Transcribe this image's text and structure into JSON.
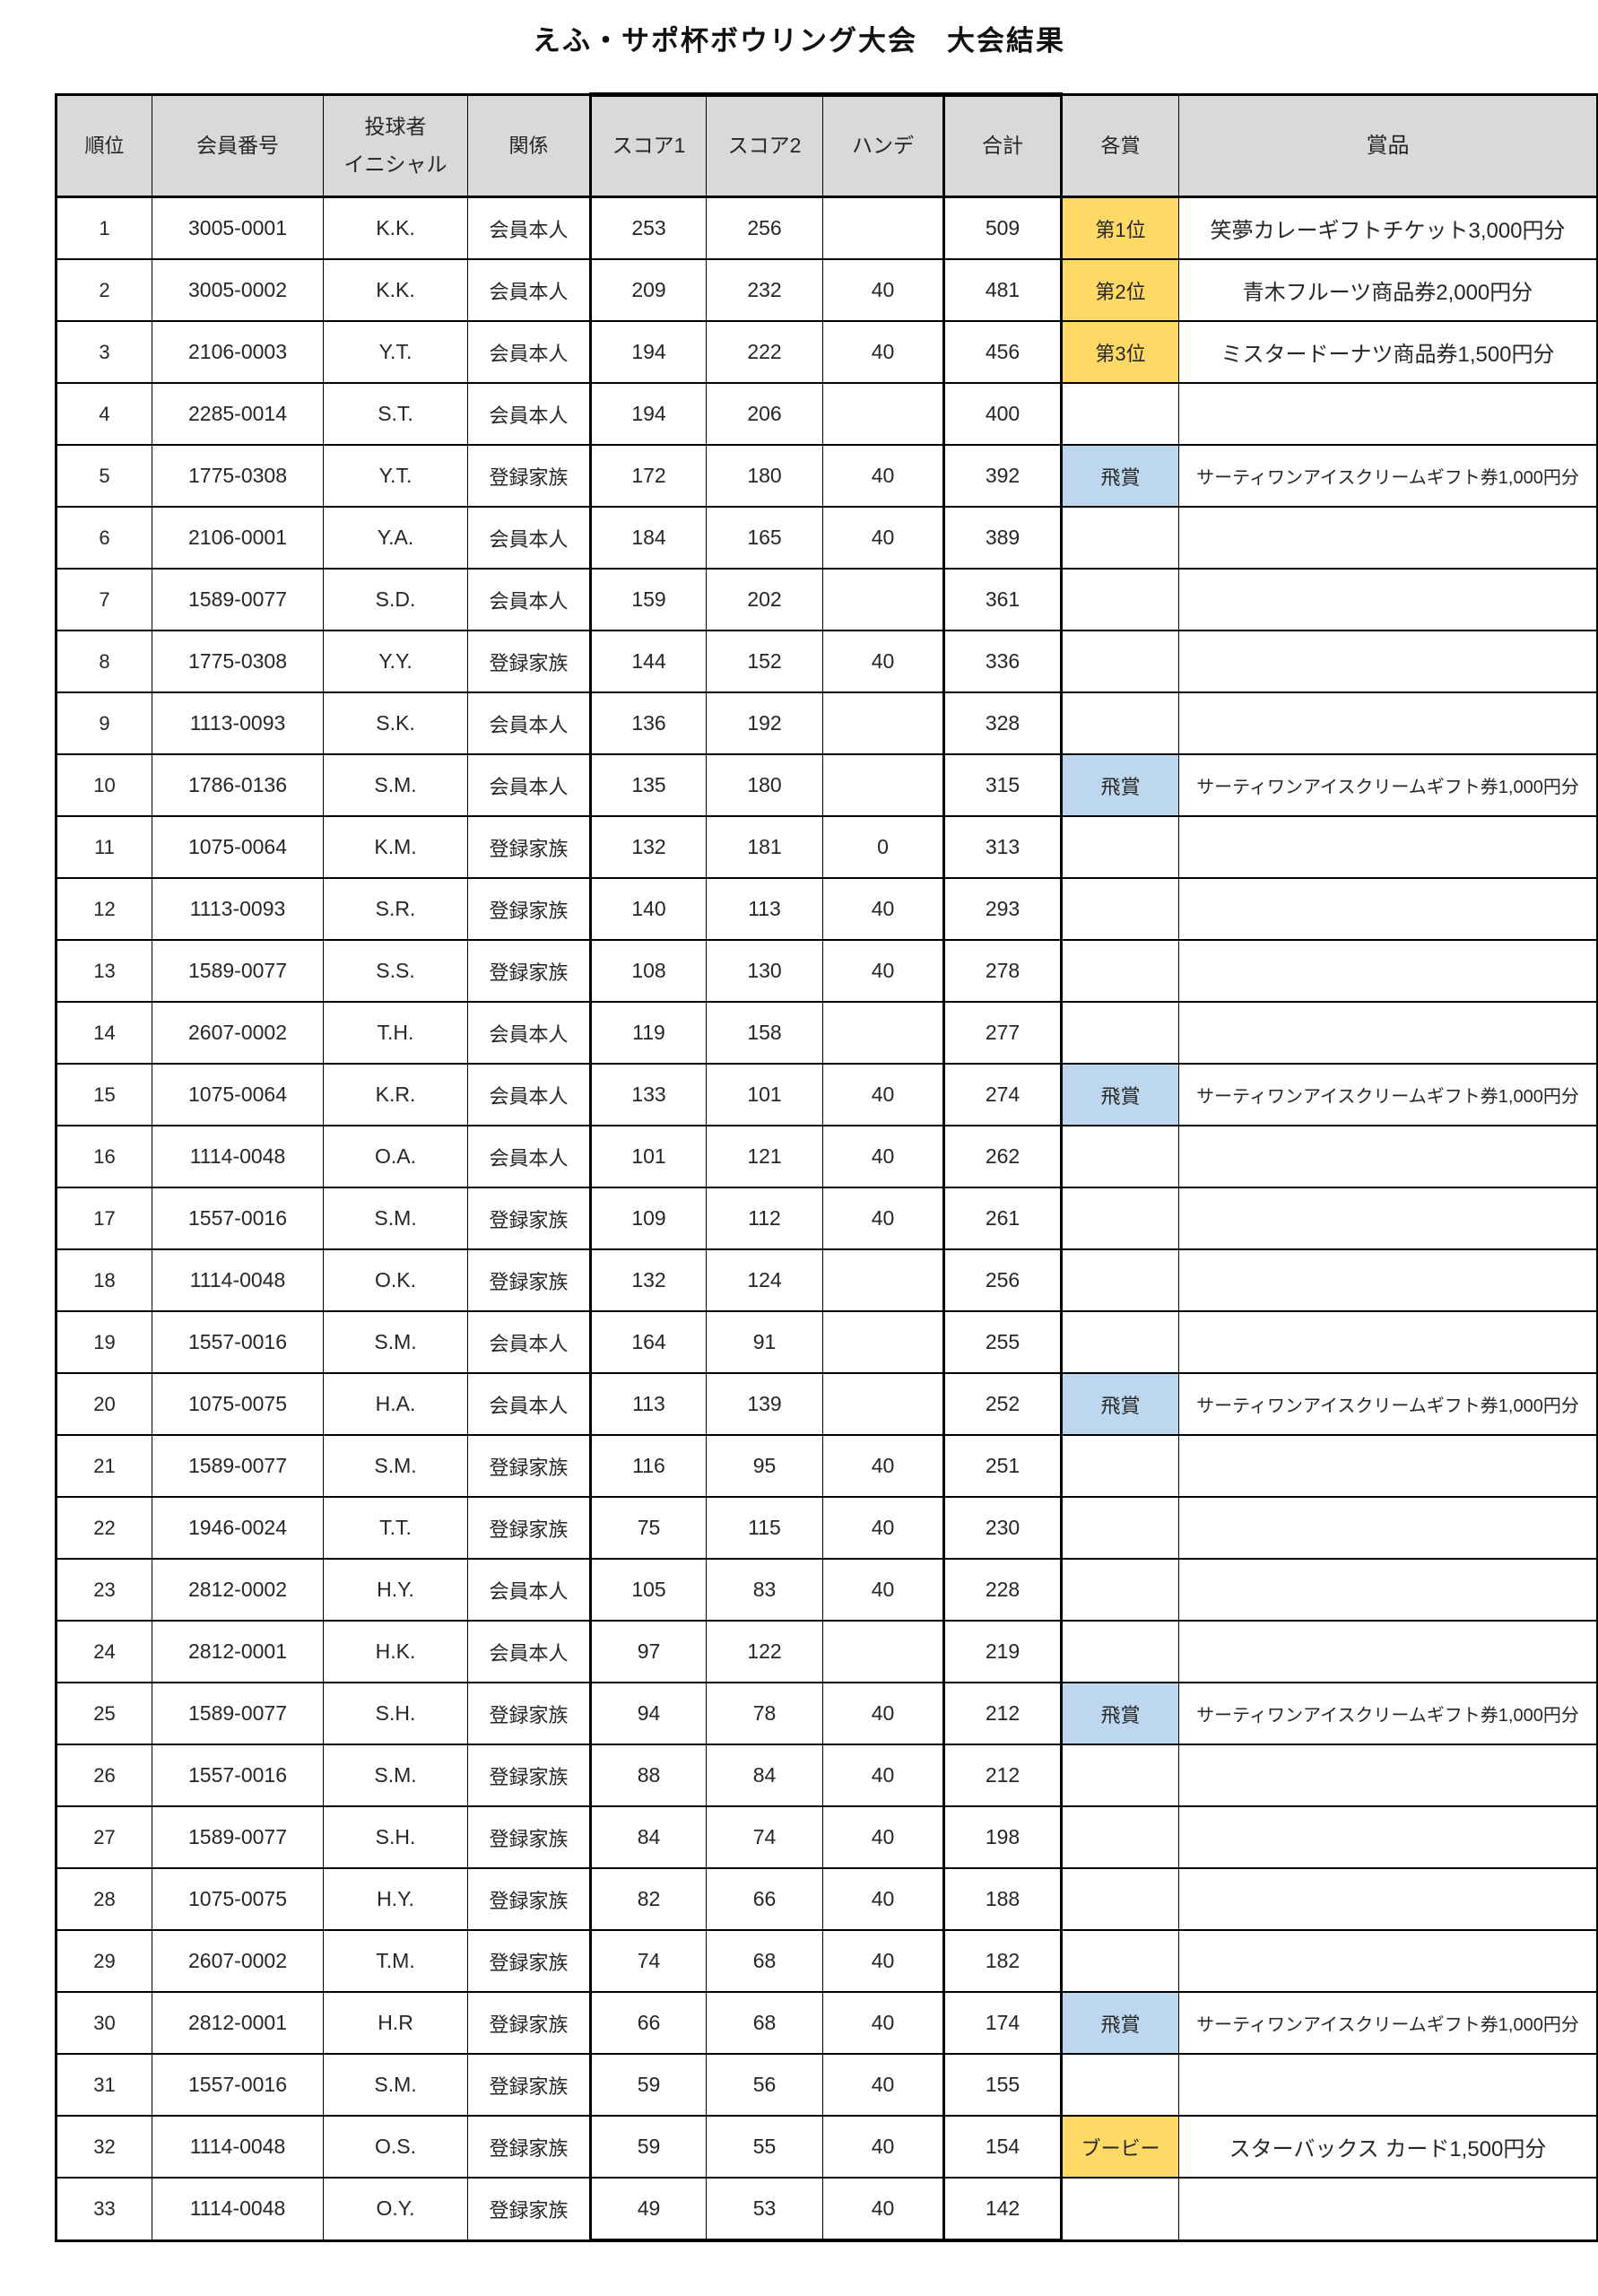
{
  "title": "えふ・サポ杯ボウリング大会　大会結果",
  "colors": {
    "award_gold": "#ffd966",
    "award_blue": "#bdd7ee",
    "header_gray": "#d9d9d9",
    "grid_line": "#000000"
  },
  "table": {
    "columns": [
      {
        "key": "rank",
        "label": "順位"
      },
      {
        "key": "member",
        "label": "会員番号"
      },
      {
        "key": "initials",
        "label": "投球者\nイニシャル"
      },
      {
        "key": "relation",
        "label": "関係"
      },
      {
        "key": "score1",
        "label": "スコア1"
      },
      {
        "key": "score2",
        "label": "スコア2"
      },
      {
        "key": "handicap",
        "label": "ハンデ"
      },
      {
        "key": "total",
        "label": "合計"
      },
      {
        "key": "award",
        "label": "各賞"
      },
      {
        "key": "prize",
        "label": "賞品"
      }
    ],
    "rows": [
      {
        "rank": "1",
        "member": "3005-0001",
        "initials": "K.K.",
        "relation": "会員本人",
        "score1": "253",
        "score2": "256",
        "handicap": "",
        "total": "509",
        "award": "第1位",
        "award_color": "gold",
        "prize": "笑夢カレーギフトチケット3,000円分",
        "prize_small": false
      },
      {
        "rank": "2",
        "member": "3005-0002",
        "initials": "K.K.",
        "relation": "会員本人",
        "score1": "209",
        "score2": "232",
        "handicap": "40",
        "total": "481",
        "award": "第2位",
        "award_color": "gold",
        "prize": "青木フルーツ商品券2,000円分",
        "prize_small": false
      },
      {
        "rank": "3",
        "member": "2106-0003",
        "initials": "Y.T.",
        "relation": "会員本人",
        "score1": "194",
        "score2": "222",
        "handicap": "40",
        "total": "456",
        "award": "第3位",
        "award_color": "gold",
        "prize": "ミスタードーナツ商品券1,500円分",
        "prize_small": false
      },
      {
        "rank": "4",
        "member": "2285-0014",
        "initials": "S.T.",
        "relation": "会員本人",
        "score1": "194",
        "score2": "206",
        "handicap": "",
        "total": "400",
        "award": "",
        "award_color": "",
        "prize": "",
        "prize_small": false
      },
      {
        "rank": "5",
        "member": "1775-0308",
        "initials": "Y.T.",
        "relation": "登録家族",
        "score1": "172",
        "score2": "180",
        "handicap": "40",
        "total": "392",
        "award": "飛賞",
        "award_color": "blue",
        "prize": "サーティワンアイスクリームギフト券1,000円分",
        "prize_small": true
      },
      {
        "rank": "6",
        "member": "2106-0001",
        "initials": "Y.A.",
        "relation": "会員本人",
        "score1": "184",
        "score2": "165",
        "handicap": "40",
        "total": "389",
        "award": "",
        "award_color": "",
        "prize": "",
        "prize_small": false
      },
      {
        "rank": "7",
        "member": "1589-0077",
        "initials": "S.D.",
        "relation": "会員本人",
        "score1": "159",
        "score2": "202",
        "handicap": "",
        "total": "361",
        "award": "",
        "award_color": "",
        "prize": "",
        "prize_small": false
      },
      {
        "rank": "8",
        "member": "1775-0308",
        "initials": "Y.Y.",
        "relation": "登録家族",
        "score1": "144",
        "score2": "152",
        "handicap": "40",
        "total": "336",
        "award": "",
        "award_color": "",
        "prize": "",
        "prize_small": false
      },
      {
        "rank": "9",
        "member": "1113-0093",
        "initials": "S.K.",
        "relation": "会員本人",
        "score1": "136",
        "score2": "192",
        "handicap": "",
        "total": "328",
        "award": "",
        "award_color": "",
        "prize": "",
        "prize_small": false
      },
      {
        "rank": "10",
        "member": "1786-0136",
        "initials": "S.M.",
        "relation": "会員本人",
        "score1": "135",
        "score2": "180",
        "handicap": "",
        "total": "315",
        "award": "飛賞",
        "award_color": "blue",
        "prize": "サーティワンアイスクリームギフト券1,000円分",
        "prize_small": true
      },
      {
        "rank": "11",
        "member": "1075-0064",
        "initials": "K.M.",
        "relation": "登録家族",
        "score1": "132",
        "score2": "181",
        "handicap": "0",
        "total": "313",
        "award": "",
        "award_color": "",
        "prize": "",
        "prize_small": false
      },
      {
        "rank": "12",
        "member": "1113-0093",
        "initials": "S.R.",
        "relation": "登録家族",
        "score1": "140",
        "score2": "113",
        "handicap": "40",
        "total": "293",
        "award": "",
        "award_color": "",
        "prize": "",
        "prize_small": false
      },
      {
        "rank": "13",
        "member": "1589-0077",
        "initials": "S.S.",
        "relation": "登録家族",
        "score1": "108",
        "score2": "130",
        "handicap": "40",
        "total": "278",
        "award": "",
        "award_color": "",
        "prize": "",
        "prize_small": false
      },
      {
        "rank": "14",
        "member": "2607-0002",
        "initials": "T.H.",
        "relation": "会員本人",
        "score1": "119",
        "score2": "158",
        "handicap": "",
        "total": "277",
        "award": "",
        "award_color": "",
        "prize": "",
        "prize_small": false
      },
      {
        "rank": "15",
        "member": "1075-0064",
        "initials": "K.R.",
        "relation": "会員本人",
        "score1": "133",
        "score2": "101",
        "handicap": "40",
        "total": "274",
        "award": "飛賞",
        "award_color": "blue",
        "prize": "サーティワンアイスクリームギフト券1,000円分",
        "prize_small": true
      },
      {
        "rank": "16",
        "member": "1114-0048",
        "initials": "O.A.",
        "relation": "会員本人",
        "score1": "101",
        "score2": "121",
        "handicap": "40",
        "total": "262",
        "award": "",
        "award_color": "",
        "prize": "",
        "prize_small": false
      },
      {
        "rank": "17",
        "member": "1557-0016",
        "initials": "S.M.",
        "relation": "登録家族",
        "score1": "109",
        "score2": "112",
        "handicap": "40",
        "total": "261",
        "award": "",
        "award_color": "",
        "prize": "",
        "prize_small": false
      },
      {
        "rank": "18",
        "member": "1114-0048",
        "initials": "O.K.",
        "relation": "登録家族",
        "score1": "132",
        "score2": "124",
        "handicap": "",
        "total": "256",
        "award": "",
        "award_color": "",
        "prize": "",
        "prize_small": false
      },
      {
        "rank": "19",
        "member": "1557-0016",
        "initials": "S.M.",
        "relation": "会員本人",
        "score1": "164",
        "score2": "91",
        "handicap": "",
        "total": "255",
        "award": "",
        "award_color": "",
        "prize": "",
        "prize_small": false
      },
      {
        "rank": "20",
        "member": "1075-0075",
        "initials": "H.A.",
        "relation": "会員本人",
        "score1": "113",
        "score2": "139",
        "handicap": "",
        "total": "252",
        "award": "飛賞",
        "award_color": "blue",
        "prize": "サーティワンアイスクリームギフト券1,000円分",
        "prize_small": true
      },
      {
        "rank": "21",
        "member": "1589-0077",
        "initials": "S.M.",
        "relation": "登録家族",
        "score1": "116",
        "score2": "95",
        "handicap": "40",
        "total": "251",
        "award": "",
        "award_color": "",
        "prize": "",
        "prize_small": false
      },
      {
        "rank": "22",
        "member": "1946-0024",
        "initials": "T.T.",
        "relation": "登録家族",
        "score1": "75",
        "score2": "115",
        "handicap": "40",
        "total": "230",
        "award": "",
        "award_color": "",
        "prize": "",
        "prize_small": false
      },
      {
        "rank": "23",
        "member": "2812-0002",
        "initials": "H.Y.",
        "relation": "会員本人",
        "score1": "105",
        "score2": "83",
        "handicap": "40",
        "total": "228",
        "award": "",
        "award_color": "",
        "prize": "",
        "prize_small": false
      },
      {
        "rank": "24",
        "member": "2812-0001",
        "initials": "H.K.",
        "relation": "会員本人",
        "score1": "97",
        "score2": "122",
        "handicap": "",
        "total": "219",
        "award": "",
        "award_color": "",
        "prize": "",
        "prize_small": false
      },
      {
        "rank": "25",
        "member": "1589-0077",
        "initials": "S.H.",
        "relation": "登録家族",
        "score1": "94",
        "score2": "78",
        "handicap": "40",
        "total": "212",
        "award": "飛賞",
        "award_color": "blue",
        "prize": "サーティワンアイスクリームギフト券1,000円分",
        "prize_small": true
      },
      {
        "rank": "26",
        "member": "1557-0016",
        "initials": "S.M.",
        "relation": "登録家族",
        "score1": "88",
        "score2": "84",
        "handicap": "40",
        "total": "212",
        "award": "",
        "award_color": "",
        "prize": "",
        "prize_small": false
      },
      {
        "rank": "27",
        "member": "1589-0077",
        "initials": "S.H.",
        "relation": "登録家族",
        "score1": "84",
        "score2": "74",
        "handicap": "40",
        "total": "198",
        "award": "",
        "award_color": "",
        "prize": "",
        "prize_small": false
      },
      {
        "rank": "28",
        "member": "1075-0075",
        "initials": "H.Y.",
        "relation": "登録家族",
        "score1": "82",
        "score2": "66",
        "handicap": "40",
        "total": "188",
        "award": "",
        "award_color": "",
        "prize": "",
        "prize_small": false
      },
      {
        "rank": "29",
        "member": "2607-0002",
        "initials": "T.M.",
        "relation": "登録家族",
        "score1": "74",
        "score2": "68",
        "handicap": "40",
        "total": "182",
        "award": "",
        "award_color": "",
        "prize": "",
        "prize_small": false
      },
      {
        "rank": "30",
        "member": "2812-0001",
        "initials": "H.R",
        "relation": "登録家族",
        "score1": "66",
        "score2": "68",
        "handicap": "40",
        "total": "174",
        "award": "飛賞",
        "award_color": "blue",
        "prize": "サーティワンアイスクリームギフト券1,000円分",
        "prize_small": true
      },
      {
        "rank": "31",
        "member": "1557-0016",
        "initials": "S.M.",
        "relation": "登録家族",
        "score1": "59",
        "score2": "56",
        "handicap": "40",
        "total": "155",
        "award": "",
        "award_color": "",
        "prize": "",
        "prize_small": false
      },
      {
        "rank": "32",
        "member": "1114-0048",
        "initials": "O.S.",
        "relation": "登録家族",
        "score1": "59",
        "score2": "55",
        "handicap": "40",
        "total": "154",
        "award": "ブービー",
        "award_color": "gold",
        "prize": "スターバックス カード1,500円分",
        "prize_small": false
      },
      {
        "rank": "33",
        "member": "1114-0048",
        "initials": "O.Y.",
        "relation": "登録家族",
        "score1": "49",
        "score2": "53",
        "handicap": "40",
        "total": "142",
        "award": "",
        "award_color": "",
        "prize": "",
        "prize_small": false
      }
    ]
  }
}
